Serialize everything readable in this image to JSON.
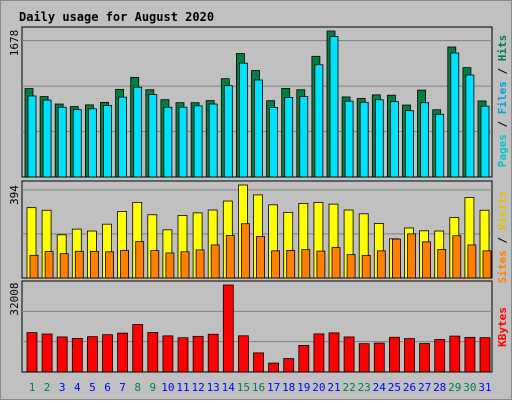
{
  "chart_data": {
    "type": "bar",
    "title": "Daily usage for August 2020",
    "days": [
      "1",
      "2",
      "3",
      "4",
      "5",
      "6",
      "7",
      "8",
      "9",
      "10",
      "11",
      "12",
      "13",
      "14",
      "15",
      "16",
      "17",
      "18",
      "19",
      "20",
      "21",
      "22",
      "23",
      "24",
      "25",
      "26",
      "27",
      "28",
      "29",
      "30",
      "31"
    ],
    "weekend_days": [
      "1",
      "2",
      "8",
      "9",
      "15",
      "16",
      "22",
      "23",
      "29",
      "30"
    ],
    "top": {
      "ymax_label": "1678",
      "ymax": 1678,
      "legend": [
        "Pages",
        "Files",
        "Hits"
      ],
      "series": [
        {
          "name": "Hits",
          "values": [
            1016,
            924,
            839,
            809,
            829,
            858,
            1007,
            1145,
            1003,
            889,
            854,
            854,
            878,
            1130,
            1420,
            1223,
            877,
            1018,
            1003,
            1387,
            1678,
            920,
            902,
            944,
            940,
            827,
            999,
            773,
            1494,
            1257,
            874
          ]
        },
        {
          "name": "Files",
          "values": [
            931,
            884,
            802,
            774,
            784,
            822,
            918,
            1032,
            947,
            802,
            802,
            818,
            839,
            1050,
            1308,
            1115,
            798,
            915,
            924,
            1290,
            1615,
            872,
            858,
            888,
            866,
            762,
            854,
            721,
            1425,
            1172,
            814
          ]
        },
        {
          "name": "Pages",
          "values": []
        }
      ]
    },
    "middle": {
      "ymax_label": "394",
      "ymax": 394,
      "legend": [
        "Sites",
        "Visits"
      ],
      "series": [
        {
          "name": "Visits",
          "values": [
            298,
            287,
            183,
            207,
            199,
            228,
            282,
            320,
            268,
            204,
            265,
            276,
            288,
            326,
            394,
            352,
            310,
            278,
            316,
            320,
            313,
            288,
            272,
            231,
            166,
            212,
            200,
            199,
            256,
            341,
            287
          ]
        },
        {
          "name": "Sites",
          "values": [
            96,
            112,
            103,
            113,
            113,
            111,
            117,
            154,
            116,
            106,
            111,
            119,
            140,
            180,
            230,
            176,
            115,
            117,
            120,
            114,
            129,
            99,
            96,
            115,
            165,
            187,
            153,
            121,
            179,
            140,
            115
          ]
        }
      ]
    },
    "bottom": {
      "ymax_label": "32008",
      "ymax": 32008,
      "legend": [
        "KBytes"
      ],
      "series": [
        {
          "name": "KBytes",
          "values": [
            14490,
            13970,
            12900,
            12350,
            13000,
            13720,
            14290,
            17480,
            14530,
            13300,
            12600,
            13120,
            13890,
            32008,
            13320,
            7030,
            3280,
            4930,
            9790,
            14020,
            14400,
            12900,
            10420,
            10640,
            12780,
            12290,
            10460,
            11960,
            13210,
            12750,
            12640
          ]
        }
      ]
    },
    "colors": {
      "background": "#c0c0c0",
      "plot_bg": "#c0c0c0",
      "title": "#0000ff",
      "hits": "#008040",
      "files": "#00e0ff",
      "pages": "#00c8c8",
      "visits": "#ffff00",
      "sites": "#ff8000",
      "kbytes": "#ff0000",
      "weekday_label": "#0000ff",
      "weekend_label": "#00804a"
    }
  }
}
